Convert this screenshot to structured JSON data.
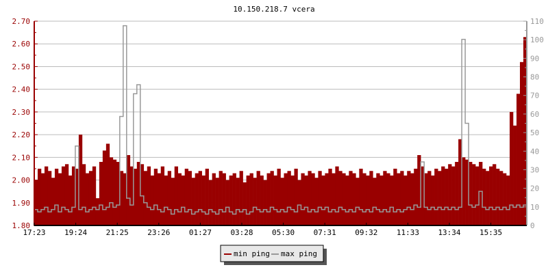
{
  "chart_data": {
    "type": "area",
    "title": "10.150.218.7 vcera",
    "xlabel": "",
    "ylabel": "",
    "ylim": [
      1.8,
      2.7
    ],
    "y_ticks": [
      "1.80",
      "1.90",
      "2.00",
      "2.10",
      "2.20",
      "2.30",
      "2.40",
      "2.50",
      "2.60",
      "2.70"
    ],
    "y2lim": [
      0,
      110
    ],
    "y2_ticks": [
      "0",
      "10",
      "20",
      "30",
      "40",
      "50",
      "60",
      "70",
      "80",
      "90",
      "100",
      "110"
    ],
    "x_ticks": [
      "17:23",
      "19:24",
      "21:25",
      "23:26",
      "01:27",
      "03:28",
      "05:30",
      "07:31",
      "09:32",
      "11:33",
      "13:34",
      "15:35"
    ],
    "grid": true,
    "legend_position": "bottom-center",
    "colors": {
      "min ping": "#990000",
      "max ping": "#999999",
      "left_axis": "#990000",
      "right_axis": "#999999",
      "grid": "#bbbbbb"
    },
    "series": [
      {
        "name": "min ping",
        "values": [
          2.0,
          2.05,
          2.03,
          2.06,
          2.04,
          2.01,
          2.05,
          2.03,
          2.06,
          2.07,
          2.02,
          2.06,
          2.05,
          2.2,
          2.07,
          2.03,
          2.04,
          2.06,
          1.92,
          2.08,
          2.13,
          2.16,
          2.1,
          2.09,
          2.08,
          2.04,
          2.03,
          2.11,
          2.06,
          2.05,
          2.08,
          2.07,
          2.04,
          2.06,
          2.02,
          2.05,
          2.03,
          2.06,
          2.02,
          2.04,
          2.01,
          2.06,
          2.03,
          2.02,
          2.05,
          2.04,
          2.01,
          2.03,
          2.04,
          2.02,
          2.05,
          2.0,
          2.03,
          2.01,
          2.04,
          2.03,
          2.0,
          2.02,
          2.03,
          2.01,
          2.04,
          1.99,
          2.02,
          2.03,
          2.01,
          2.04,
          2.02,
          2.0,
          2.03,
          2.04,
          2.02,
          2.05,
          2.01,
          2.03,
          2.04,
          2.02,
          2.05,
          2.0,
          2.03,
          2.02,
          2.04,
          2.03,
          2.01,
          2.04,
          2.02,
          2.03,
          2.05,
          2.03,
          2.06,
          2.04,
          2.03,
          2.02,
          2.04,
          2.03,
          2.01,
          2.05,
          2.03,
          2.02,
          2.04,
          2.01,
          2.03,
          2.02,
          2.04,
          2.03,
          2.02,
          2.05,
          2.03,
          2.04,
          2.02,
          2.04,
          2.03,
          2.05,
          2.11,
          2.06,
          2.03,
          2.04,
          2.02,
          2.05,
          2.04,
          2.06,
          2.05,
          2.07,
          2.06,
          2.08,
          2.18,
          2.1,
          2.09,
          2.08,
          2.07,
          2.06,
          2.08,
          2.05,
          2.04,
          2.06,
          2.07,
          2.05,
          2.04,
          2.03,
          2.02,
          2.3,
          2.24,
          2.38,
          2.52,
          2.63
        ]
      },
      {
        "name": "max ping",
        "values": [
          1.87,
          1.86,
          1.87,
          1.88,
          1.86,
          1.87,
          1.89,
          1.86,
          1.88,
          1.87,
          1.86,
          1.88,
          2.15,
          1.87,
          1.88,
          1.86,
          1.87,
          1.88,
          1.87,
          1.89,
          1.87,
          1.88,
          1.9,
          1.88,
          1.89,
          2.28,
          2.68,
          1.92,
          1.89,
          2.38,
          2.42,
          1.93,
          1.9,
          1.88,
          1.87,
          1.89,
          1.87,
          1.86,
          1.88,
          1.87,
          1.85,
          1.87,
          1.86,
          1.88,
          1.86,
          1.87,
          1.85,
          1.86,
          1.87,
          1.86,
          1.85,
          1.87,
          1.86,
          1.85,
          1.87,
          1.86,
          1.88,
          1.86,
          1.85,
          1.87,
          1.86,
          1.87,
          1.85,
          1.86,
          1.88,
          1.87,
          1.86,
          1.87,
          1.86,
          1.88,
          1.87,
          1.86,
          1.87,
          1.86,
          1.88,
          1.87,
          1.86,
          1.89,
          1.87,
          1.88,
          1.86,
          1.87,
          1.86,
          1.88,
          1.87,
          1.88,
          1.86,
          1.87,
          1.86,
          1.88,
          1.87,
          1.86,
          1.87,
          1.86,
          1.88,
          1.87,
          1.86,
          1.87,
          1.86,
          1.88,
          1.87,
          1.86,
          1.87,
          1.86,
          1.88,
          1.86,
          1.87,
          1.86,
          1.87,
          1.88,
          1.87,
          1.89,
          1.88,
          2.08,
          1.88,
          1.87,
          1.88,
          1.87,
          1.88,
          1.87,
          1.88,
          1.87,
          1.88,
          1.87,
          1.88,
          2.62,
          2.25,
          1.89,
          1.88,
          1.89,
          1.95,
          1.88,
          1.87,
          1.88,
          1.87,
          1.88,
          1.87,
          1.88,
          1.87,
          1.89,
          1.88,
          1.89,
          1.88,
          1.89
        ]
      }
    ]
  }
}
